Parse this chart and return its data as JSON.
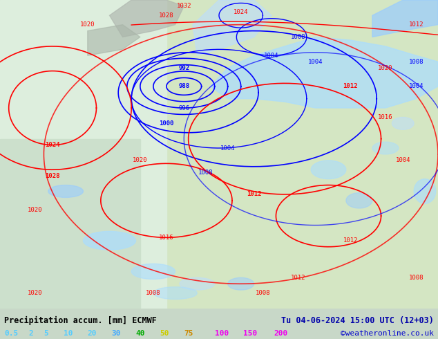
{
  "title_left": "Precipitation accum. [mm] ECMWF",
  "title_right": "Tu 04-06-2024 15:00 UTC (12+03)",
  "credit": "©weatheronline.co.uk",
  "colorbar_labels": [
    "0.5",
    "2",
    "5",
    "10",
    "20",
    "30",
    "40",
    "50",
    "75",
    "100",
    "150",
    "200"
  ],
  "colorbar_colors": [
    "#aaeeff",
    "#77ddff",
    "#44ccff",
    "#00aaff",
    "#0077ff",
    "#00cc00",
    "#ffff00",
    "#ffaa00",
    "#ff5500",
    "#ff0000",
    "#cc00cc",
    "#ff66ff"
  ],
  "bg_color": "#e8f4e8",
  "map_bg": "#e0eee0",
  "bottom_bar_color": "#ffffff",
  "text_color_left": "#000000",
  "text_color_right": "#0000aa",
  "credit_color": "#0000cc",
  "label_colors": [
    "#55ccff",
    "#55ccff",
    "#55ccff",
    "#55ccff",
    "#55ccff",
    "#55ccff",
    "#00cc00",
    "#ffff00",
    "#ffaa00",
    "#ff00ff",
    "#ff00ff",
    "#ff00ff"
  ],
  "fig_width": 6.34,
  "fig_height": 4.9,
  "dpi": 100
}
